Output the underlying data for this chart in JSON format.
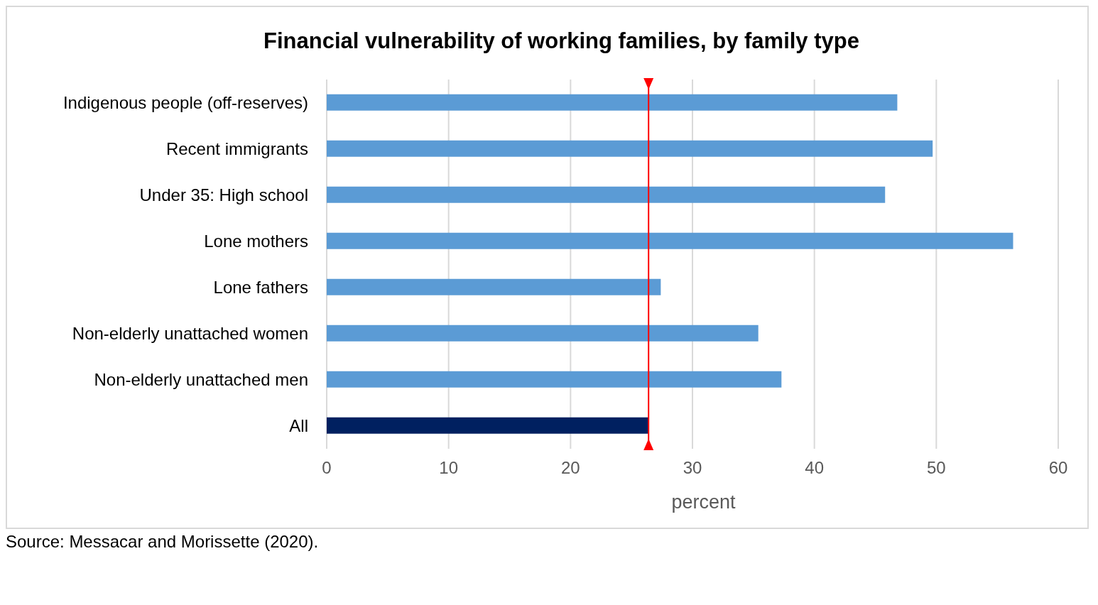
{
  "chart_data": {
    "type": "bar",
    "orientation": "horizontal",
    "title": "Financial vulnerability of working families, by family type",
    "xlabel": "percent",
    "categories": [
      "Indigenous people (off-reserves)",
      "Recent immigrants",
      "Under 35: High school",
      "Lone mothers",
      "Lone fathers",
      "Non-elderly unattached women",
      "Non-elderly unattached men",
      "All"
    ],
    "values": [
      46.8,
      49.7,
      45.8,
      56.3,
      27.4,
      35.4,
      37.3,
      26.4
    ],
    "colors": [
      "#5b9bd5",
      "#5b9bd5",
      "#5b9bd5",
      "#5b9bd5",
      "#5b9bd5",
      "#5b9bd5",
      "#5b9bd5",
      "#002060"
    ],
    "xlim": [
      0,
      60
    ],
    "xticks": [
      0,
      10,
      20,
      30,
      40,
      50,
      60
    ],
    "grid": "x",
    "ref_lines": [
      {
        "axis": "x",
        "value": 26.4,
        "color": "#ff0000"
      }
    ],
    "annotations": [
      "Source: Messacar and Morissette (2020)."
    ]
  }
}
